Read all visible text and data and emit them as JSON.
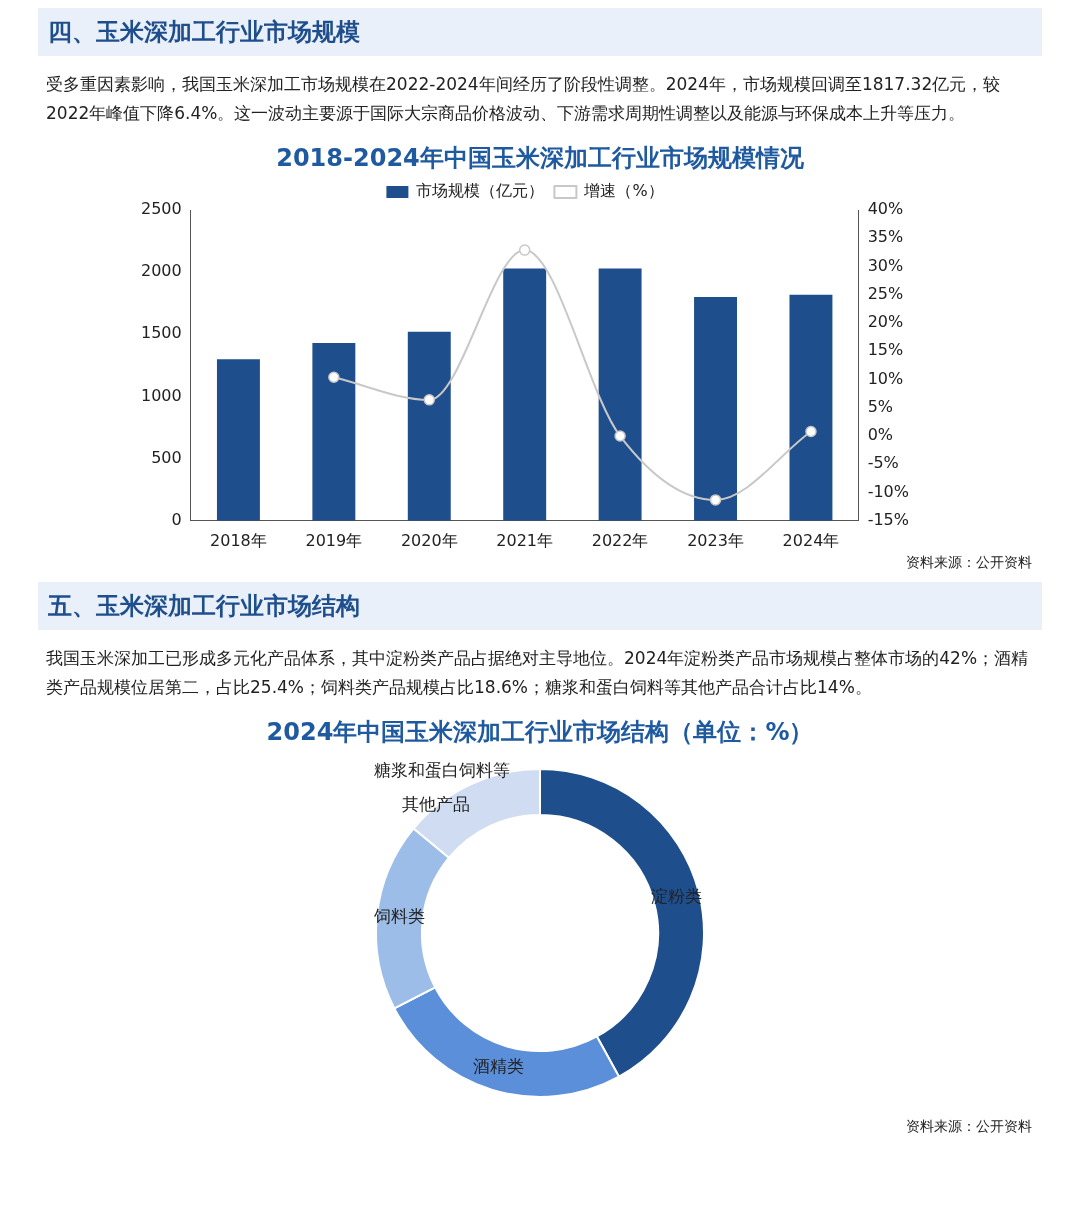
{
  "chart_data": [
    {
      "type": "bar",
      "title": "2018-2024年中国玉米深加工行业市场规模情况",
      "annotations": [
        "四、玉米深加工行业市场规模",
        "受多重因素影响，我国玉米深加工市场规模在2022-2024年间经历了阶段性调整。2024年，市场规模回调至1817.32亿元，较2022年峰值下降6.4%。这一波动主要源于国际大宗商品价格波动、下游需求周期性调整以及能源与环保成本上升等压力。",
        "资料来源：公开资料"
      ],
      "categories": [
        "2018年",
        "2019年",
        "2020年",
        "2021年",
        "2022年",
        "2023年",
        "2024年"
      ],
      "series": [
        {
          "name": "市场规模（亿元）",
          "color": "#1f4e8c",
          "values": [
            1300,
            1430,
            1520,
            2030,
            2030,
            1800,
            1817.32
          ]
        },
        {
          "name": "增速（%）",
          "type": "line",
          "axis": "y2",
          "color": "#c8c8c8",
          "values": [
            null,
            10.4,
            6.4,
            32.9,
            0,
            -11.3,
            0.8
          ]
        }
      ],
      "ylim": [
        0,
        2500
      ],
      "yticks": [
        0,
        500,
        1000,
        1500,
        2000,
        2500
      ],
      "y2lim": [
        -15,
        40
      ],
      "y2ticks": [
        {
          "value": -15,
          "label": "-15%"
        },
        {
          "value": -10,
          "label": "-10%"
        },
        {
          "value": -5,
          "label": "-5%"
        },
        {
          "value": 0,
          "label": "0%"
        },
        {
          "value": 5,
          "label": "5%"
        },
        {
          "value": 10,
          "label": "10%"
        },
        {
          "value": 15,
          "label": "15%"
        },
        {
          "value": 20,
          "label": "20%"
        },
        {
          "value": 25,
          "label": "25%"
        },
        {
          "value": 30,
          "label": "30%"
        },
        {
          "value": 35,
          "label": "35%"
        },
        {
          "value": 40,
          "label": "40%"
        }
      ],
      "legend": "top",
      "marker": "circle"
    },
    {
      "type": "donut",
      "title": "2024年中国玉米深加工行业市场结构（单位：%）",
      "annotations": [
        "五、玉米深加工行业市场结构",
        "我国玉米深加工已形成多元化产品体系，其中淀粉类产品占据绝对主导地位。2024年淀粉类产品市场规模占整体市场的42%；酒精类产品规模位居第二，占比25.4%；饲料类产品规模占比18.6%；糖浆和蛋白饲料等其他产品合计占比14%。",
        "资料来源：公开资料"
      ],
      "categories": [
        "淀粉类",
        "酒精类",
        "饲料类",
        "糖浆和蛋白饲料等其他产品"
      ],
      "values": [
        42,
        25.4,
        18.6,
        14
      ],
      "colors": [
        "#1f4e8c",
        "#5b8fd9",
        "#9dbde9",
        "#cfdcf1"
      ],
      "legend": false
    }
  ]
}
